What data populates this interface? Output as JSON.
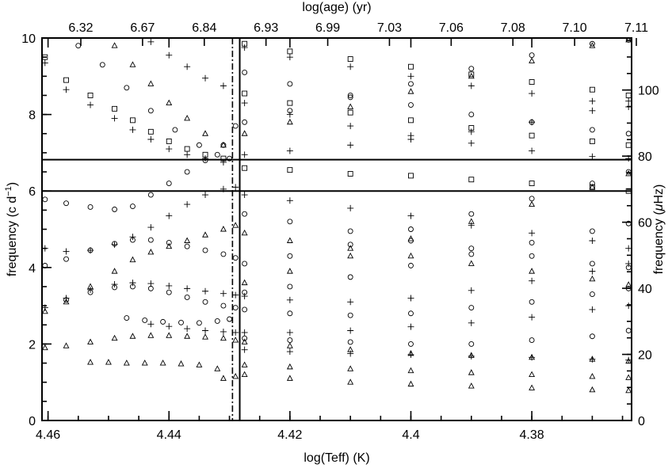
{
  "chart_data": {
    "type": "scatter",
    "title": "",
    "xlabel": "log(Teff) (K)",
    "ylabel_left": "frequency (c d",
    "ylabel_left_sup": "−1",
    "ylabel_left_tail": ")",
    "ylabel_right_prefix": "frequency (",
    "ylabel_right_mu": "μ",
    "ylabel_right_tail": "Hz)",
    "top_axis_label": "log(age) (yr)",
    "xlim": [
      4.461,
      4.3635
    ],
    "ylim": [
      0,
      10
    ],
    "right_ylim_uHz": [
      0,
      115.74
    ],
    "x_ticks": [
      "4.46",
      "4.44",
      "4.42",
      "4.4",
      "4.38"
    ],
    "y_ticks": [
      "0",
      "2",
      "4",
      "6",
      "8",
      "10"
    ],
    "right_ticks": [
      "0",
      "20",
      "40",
      "60",
      "80",
      "100"
    ],
    "top_ticks": [
      "6.32",
      "6.67",
      "6.84",
      "6.93",
      "6.99",
      "7.03",
      "7.06",
      "7.08",
      "7.10",
      "7.11"
    ],
    "hlines": [
      6.0,
      6.82
    ],
    "vline_solid_x": 4.4283,
    "vline_dashdot_x": 4.4295,
    "marker_legend": [
      "plus",
      "square",
      "circle",
      "triangle"
    ],
    "series": [
      {
        "marker": "circle",
        "x": [
          4.4605,
          4.457,
          4.453,
          4.449,
          4.446,
          4.443,
          4.44,
          4.437,
          4.434,
          4.431,
          4.429
        ],
        "y": [
          5.78,
          5.68,
          5.58,
          5.52,
          5.6,
          5.9,
          6.2,
          6.5,
          6.8,
          7.2,
          7.7
        ]
      },
      {
        "marker": "plus",
        "x": [
          4.4605,
          4.457,
          4.453,
          4.449,
          4.446,
          4.443,
          4.44,
          4.437,
          4.434,
          4.431,
          4.429
        ],
        "y": [
          4.5,
          4.42,
          4.45,
          4.6,
          4.8,
          5.05,
          5.35,
          5.65,
          5.9,
          6.05,
          6.1
        ]
      },
      {
        "marker": "circle",
        "x": [
          4.4605,
          4.457,
          4.453,
          4.449,
          4.446,
          4.443,
          4.44,
          4.437,
          4.434,
          4.431,
          4.429
        ],
        "y": [
          4.05,
          4.22,
          4.45,
          4.62,
          4.72,
          4.72,
          4.65,
          4.55,
          4.45,
          4.35,
          4.25
        ]
      },
      {
        "marker": "triangle",
        "x": [
          4.4605,
          4.457,
          4.453,
          4.449,
          4.446,
          4.443,
          4.44,
          4.437,
          4.434,
          4.431,
          4.429
        ],
        "y": [
          2.85,
          3.1,
          3.5,
          3.9,
          4.2,
          4.4,
          4.55,
          4.7,
          4.85,
          5.0,
          5.1
        ]
      },
      {
        "marker": "plus",
        "x": [
          4.4605,
          4.457,
          4.453,
          4.449,
          4.446,
          4.443,
          4.44,
          4.437,
          4.434,
          4.431,
          4.429
        ],
        "y": [
          2.95,
          3.2,
          3.42,
          3.56,
          3.6,
          3.58,
          3.52,
          3.45,
          3.38,
          3.32,
          3.28
        ]
      },
      {
        "marker": "circle",
        "x": [
          4.457,
          4.453,
          4.449,
          4.446,
          4.443,
          4.44,
          4.437,
          4.434,
          4.431,
          4.429
        ],
        "y": [
          3.15,
          3.35,
          3.48,
          3.5,
          3.45,
          3.35,
          3.22,
          3.1,
          3.0,
          2.95
        ]
      },
      {
        "marker": "circle",
        "x": [
          4.447,
          4.444,
          4.441,
          4.438,
          4.435,
          4.432,
          4.43
        ],
        "y": [
          2.68,
          2.62,
          2.58,
          2.56,
          2.55,
          2.6,
          2.65
        ]
      },
      {
        "marker": "plus",
        "x": [
          4.443,
          4.44,
          4.437,
          4.434,
          4.431,
          4.429
        ],
        "y": [
          2.52,
          2.46,
          2.4,
          2.35,
          2.32,
          2.3
        ]
      },
      {
        "marker": "triangle",
        "x": [
          4.4605,
          4.457,
          4.453,
          4.449,
          4.446,
          4.443,
          4.44,
          4.437,
          4.434,
          4.431,
          4.429
        ],
        "y": [
          1.9,
          1.95,
          2.05,
          2.15,
          2.2,
          2.22,
          2.22,
          2.2,
          2.18,
          2.15,
          2.1
        ]
      },
      {
        "marker": "triangle",
        "x": [
          4.453,
          4.45,
          4.447,
          4.444,
          4.441,
          4.438,
          4.435,
          4.432
        ],
        "y": [
          1.52,
          1.52,
          1.5,
          1.5,
          1.5,
          1.48,
          1.45,
          1.35
        ]
      },
      {
        "marker": "triangle",
        "x": [
          4.431,
          4.429
        ],
        "y": [
          1.1,
          1.15
        ]
      },
      {
        "marker": "plus",
        "x": [
          4.4605,
          4.457,
          4.453,
          4.449,
          4.446,
          4.443,
          4.44,
          4.437,
          4.434,
          4.431
        ],
        "y": [
          9.35,
          8.65,
          8.25,
          7.9,
          7.6,
          7.35,
          7.1,
          6.95,
          6.85,
          6.75
        ]
      },
      {
        "marker": "square",
        "x": [
          4.4605,
          4.457,
          4.453,
          4.449,
          4.446,
          4.443,
          4.44,
          4.437,
          4.434,
          4.431
        ],
        "y": [
          9.5,
          8.9,
          8.5,
          8.15,
          7.85,
          7.55,
          7.3,
          7.1,
          6.95,
          6.85
        ]
      },
      {
        "marker": "circle",
        "x": [
          4.455,
          4.451,
          4.447,
          4.443,
          4.439,
          4.435,
          4.432,
          4.43
        ],
        "y": [
          9.8,
          9.3,
          8.7,
          8.1,
          7.6,
          7.2,
          6.95,
          6.85
        ]
      },
      {
        "marker": "triangle",
        "x": [
          4.449,
          4.446,
          4.443,
          4.44,
          4.437,
          4.434,
          4.431
        ],
        "y": [
          9.8,
          9.3,
          8.8,
          8.3,
          7.9,
          7.5,
          7.2
        ]
      },
      {
        "marker": "plus",
        "x": [
          4.443,
          4.44,
          4.437,
          4.434,
          4.431
        ],
        "y": [
          9.9,
          9.55,
          9.25,
          8.95,
          8.75
        ]
      },
      {
        "marker": "plus",
        "x": [
          4.4275,
          4.42,
          4.41,
          4.4,
          4.39,
          4.38,
          4.37,
          4.364
        ],
        "y": [
          6.95,
          7.05,
          7.2,
          7.35,
          7.55,
          7.8,
          8.1,
          8.35
        ]
      },
      {
        "marker": "square",
        "x": [
          4.4275,
          4.42,
          4.41,
          4.4,
          4.39,
          4.38,
          4.37,
          4.364
        ],
        "y": [
          6.6,
          6.55,
          6.45,
          6.4,
          6.3,
          6.2,
          6.1,
          6.0
        ]
      },
      {
        "marker": "plus",
        "x": [
          4.4275,
          4.42,
          4.41,
          4.4,
          4.39,
          4.38,
          4.37,
          4.364
        ],
        "y": [
          5.9,
          5.75,
          5.55,
          5.35,
          5.1,
          4.9,
          4.7,
          4.5
        ]
      },
      {
        "marker": "circle",
        "x": [
          4.4275,
          4.42,
          4.41,
          4.4,
          4.39,
          4.38,
          4.37,
          4.364
        ],
        "y": [
          5.4,
          5.2,
          4.95,
          4.7,
          4.5,
          4.3,
          4.1,
          4.0
        ]
      },
      {
        "marker": "triangle",
        "x": [
          4.4275,
          4.42,
          4.41,
          4.4,
          4.39,
          4.38,
          4.37,
          4.364
        ],
        "y": [
          4.9,
          4.7,
          4.5,
          4.3,
          4.1,
          3.9,
          3.7,
          3.55
        ]
      },
      {
        "marker": "circle",
        "x": [
          4.4275,
          4.42,
          4.41,
          4.4,
          4.39,
          4.38,
          4.37,
          4.364
        ],
        "y": [
          3.35,
          3.5,
          3.75,
          4.05,
          4.35,
          4.65,
          4.95,
          5.15
        ]
      },
      {
        "marker": "plus",
        "x": [
          4.4275,
          4.42,
          4.41,
          4.4,
          4.39,
          4.38,
          4.37,
          4.364
        ],
        "y": [
          3.25,
          3.15,
          3.1,
          3.2,
          3.4,
          3.65,
          3.9,
          4.1
        ]
      },
      {
        "marker": "circle",
        "x": [
          4.4275,
          4.42,
          4.41,
          4.4,
          4.39,
          4.38,
          4.37,
          4.364
        ],
        "y": [
          2.9,
          2.8,
          2.75,
          2.8,
          2.95,
          3.1,
          3.3,
          3.45
        ]
      },
      {
        "marker": "plus",
        "x": [
          4.4275,
          4.42,
          4.41,
          4.4,
          4.39,
          4.38,
          4.37,
          4.364
        ],
        "y": [
          2.3,
          2.3,
          2.35,
          2.45,
          2.55,
          2.7,
          2.9,
          3.0
        ]
      },
      {
        "marker": "circle",
        "x": [
          4.4275,
          4.42,
          4.41,
          4.4,
          4.39,
          4.38,
          4.37,
          4.364
        ],
        "y": [
          2.15,
          2.1,
          2.05,
          2.0,
          2.0,
          2.1,
          2.2,
          2.35
        ]
      },
      {
        "marker": "triangle",
        "x": [
          4.4275,
          4.42,
          4.41,
          4.4,
          4.39,
          4.38,
          4.37,
          4.364
        ],
        "y": [
          2.05,
          1.95,
          1.85,
          1.75,
          1.7,
          1.65,
          1.6,
          1.55
        ]
      },
      {
        "marker": "plus",
        "x": [
          4.4275,
          4.42,
          4.41,
          4.4,
          4.39,
          4.38,
          4.37,
          4.364
        ],
        "y": [
          1.85,
          1.8,
          1.75,
          1.72,
          1.68,
          1.65,
          1.6,
          1.58
        ]
      },
      {
        "marker": "triangle",
        "x": [
          4.4275,
          4.42,
          4.41,
          4.4,
          4.39,
          4.38,
          4.37,
          4.364
        ],
        "y": [
          1.45,
          1.4,
          1.35,
          1.3,
          1.25,
          1.2,
          1.15,
          1.12
        ]
      },
      {
        "marker": "triangle",
        "x": [
          4.4275,
          4.42,
          4.41,
          4.4,
          4.39,
          4.38,
          4.37,
          4.364
        ],
        "y": [
          1.2,
          1.1,
          1.0,
          0.95,
          0.9,
          0.85,
          0.8,
          0.78
        ]
      },
      {
        "marker": "circle",
        "x": [
          4.4275,
          4.42,
          4.41,
          4.4,
          4.39,
          4.38,
          4.37,
          4.364
        ],
        "y": [
          7.8,
          8.1,
          8.45,
          8.8,
          9.2,
          9.55,
          9.85,
          9.95
        ]
      },
      {
        "marker": "triangle",
        "x": [
          4.4275,
          4.42,
          4.41,
          4.4,
          4.39,
          4.38,
          4.37,
          4.364
        ],
        "y": [
          7.5,
          7.8,
          8.2,
          8.6,
          9.0,
          9.4,
          9.8,
          9.95
        ]
      },
      {
        "marker": "plus",
        "x": [
          4.4275,
          4.42,
          4.41,
          4.4,
          4.39,
          4.38,
          4.37,
          4.364
        ],
        "y": [
          8.3,
          8.0,
          7.7,
          7.45,
          7.25,
          7.05,
          6.9,
          6.85
        ]
      },
      {
        "marker": "square",
        "x": [
          4.4275,
          4.42,
          4.41,
          4.4,
          4.39,
          4.38,
          4.37,
          4.364
        ],
        "y": [
          8.55,
          8.3,
          8.05,
          7.85,
          7.65,
          7.45,
          7.3,
          7.2
        ]
      },
      {
        "marker": "circle",
        "x": [
          4.4275,
          4.42,
          4.41,
          4.4,
          4.39,
          4.38,
          4.37,
          4.364
        ],
        "y": [
          9.1,
          8.8,
          8.5,
          8.25,
          8.0,
          7.8,
          7.6,
          7.5
        ]
      },
      {
        "marker": "plus",
        "x": [
          4.4275,
          4.42,
          4.41,
          4.4,
          4.39,
          4.38,
          4.37,
          4.364
        ],
        "y": [
          9.75,
          9.5,
          9.25,
          9.0,
          8.75,
          8.55,
          8.35,
          8.2
        ]
      },
      {
        "marker": "square",
        "x": [
          4.4275,
          4.42,
          4.41,
          4.4,
          4.39,
          4.38,
          4.37,
          4.364
        ],
        "y": [
          9.85,
          9.65,
          9.45,
          9.25,
          9.05,
          8.85,
          8.65,
          8.5
        ]
      },
      {
        "marker": "circle",
        "x": [
          4.4275,
          4.42,
          4.41,
          4.4,
          4.39,
          4.38,
          4.37,
          4.364
        ],
        "y": [
          4.1,
          4.3,
          4.6,
          5.0,
          5.4,
          5.8,
          6.2,
          6.5
        ]
      },
      {
        "marker": "triangle",
        "x": [
          4.4275,
          4.42,
          4.41,
          4.4,
          4.39,
          4.38,
          4.37,
          4.364
        ],
        "y": [
          3.6,
          3.9,
          4.3,
          4.75,
          5.2,
          5.65,
          6.1,
          6.45
        ]
      }
    ]
  }
}
